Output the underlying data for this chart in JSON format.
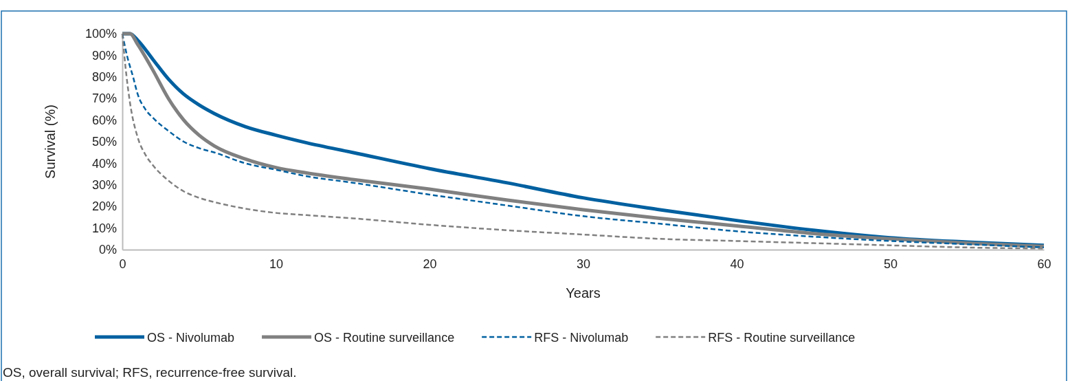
{
  "chart_data": {
    "type": "line",
    "xlabel": "Years",
    "ylabel": "Survival (%)",
    "xlim": [
      0,
      60
    ],
    "xticks": [
      0,
      10,
      20,
      30,
      40,
      50,
      60
    ],
    "ylim": [
      0,
      100
    ],
    "yticks": [
      {
        "value": 0,
        "label": "0%"
      },
      {
        "value": 10,
        "label": "10%"
      },
      {
        "value": 20,
        "label": "20%"
      },
      {
        "value": 30,
        "label": "30%"
      },
      {
        "value": 40,
        "label": "40%"
      },
      {
        "value": 50,
        "label": "50%"
      },
      {
        "value": 60,
        "label": "60%"
      },
      {
        "value": 70,
        "label": "70%"
      },
      {
        "value": 80,
        "label": "80%"
      },
      {
        "value": 90,
        "label": "90%"
      },
      {
        "value": 100,
        "label": "100%"
      }
    ],
    "grid": false,
    "legend": "bottom",
    "marker": "none",
    "annotations": [
      "OS, overall survival; RFS, recurrence-free survival."
    ],
    "series": [
      {
        "name": "OS - Nivolumab",
        "color": "#0060a0",
        "line_style": "solid",
        "x": [
          0,
          0.5,
          1,
          2,
          3,
          4,
          5,
          6,
          8,
          10,
          12,
          15,
          20,
          25,
          30,
          35,
          40,
          45,
          50,
          55,
          60
        ],
        "values": [
          100,
          100,
          97,
          88,
          79,
          72,
          67,
          63,
          57,
          53,
          49.5,
          45,
          37.5,
          31,
          24,
          18.5,
          13.5,
          9,
          5.5,
          3.5,
          2
        ]
      },
      {
        "name": "OS - Routine surveillance",
        "color": "#808080",
        "line_style": "solid",
        "x": [
          0,
          0.5,
          1,
          2,
          3,
          4,
          5,
          6,
          8,
          10,
          12,
          15,
          20,
          25,
          30,
          35,
          40,
          45,
          50,
          55,
          60
        ],
        "values": [
          100,
          100,
          95,
          83,
          70,
          60,
          53,
          48,
          42,
          38,
          35.5,
          32.5,
          28,
          23,
          18.5,
          14.5,
          11,
          7.5,
          5,
          3,
          1.5
        ]
      },
      {
        "name": "RFS - Nivolumab",
        "color": "#0060a0",
        "line_style": "dashed",
        "x": [
          0,
          0.3,
          0.7,
          1,
          1.5,
          2,
          3,
          4,
          5,
          6,
          8,
          10,
          12,
          15,
          20,
          25,
          30,
          35,
          40,
          45,
          50,
          55,
          60
        ],
        "values": [
          100,
          90,
          80,
          72,
          65,
          61,
          55,
          50,
          47,
          45,
          40,
          37,
          34,
          31,
          25.5,
          20.5,
          15.5,
          12,
          8.5,
          6,
          4,
          2.5,
          1
        ]
      },
      {
        "name": "RFS - Routine surveillance",
        "color": "#808080",
        "line_style": "dashed",
        "x": [
          0,
          0.2,
          0.5,
          1,
          1.5,
          2,
          3,
          4,
          5,
          6,
          8,
          10,
          12,
          15,
          20,
          25,
          30,
          35,
          40,
          45,
          50,
          55,
          60
        ],
        "values": [
          100,
          85,
          68,
          52,
          44,
          39,
          32,
          27,
          24,
          22,
          19,
          17,
          16,
          14.5,
          11.5,
          9,
          7,
          5,
          4,
          3,
          2,
          1,
          0.5
        ]
      }
    ]
  }
}
